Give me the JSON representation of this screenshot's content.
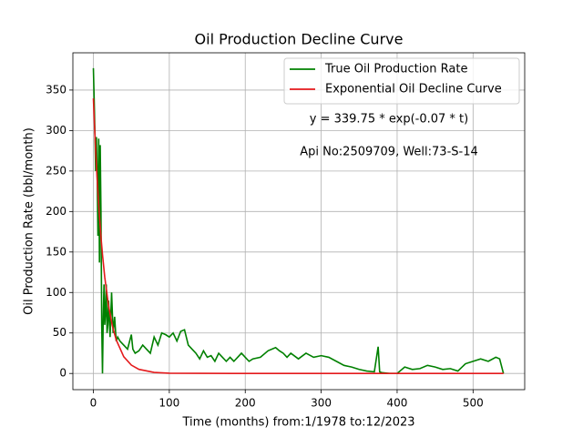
{
  "chart_data": {
    "type": "line",
    "title": "Oil Production Decline Curve",
    "xlabel": "Time (months) from:1/1978 to:12/2023",
    "ylabel": "Oil Production Rate (bbl/month)",
    "annotations": [
      "y = 339.75 * exp(-0.07 * t)",
      "Api No:2509709, Well:73-S-14"
    ],
    "xlim": [
      -27,
      568
    ],
    "ylim": [
      -20,
      396
    ],
    "xticks": [
      0,
      100,
      200,
      300,
      400,
      500
    ],
    "yticks": [
      0,
      50,
      100,
      150,
      200,
      250,
      300,
      350
    ],
    "grid": true,
    "legend": "upper right",
    "series": [
      {
        "name": "True Oil Production Rate",
        "color": "#008000",
        "x": [
          0,
          1,
          2,
          3,
          4,
          5,
          6,
          7,
          8,
          9,
          10,
          11,
          12,
          13,
          14,
          15,
          16,
          17,
          18,
          19,
          20,
          22,
          24,
          26,
          28,
          30,
          32,
          35,
          40,
          45,
          50,
          52,
          55,
          60,
          65,
          70,
          75,
          80,
          85,
          90,
          95,
          100,
          105,
          110,
          115,
          120,
          125,
          130,
          135,
          140,
          145,
          150,
          155,
          160,
          165,
          170,
          175,
          180,
          185,
          190,
          195,
          200,
          205,
          210,
          220,
          230,
          240,
          245,
          250,
          255,
          260,
          270,
          280,
          290,
          300,
          310,
          320,
          330,
          340,
          350,
          360,
          370,
          375,
          377,
          380,
          390,
          400,
          410,
          420,
          430,
          440,
          450,
          460,
          470,
          480,
          490,
          500,
          510,
          520,
          530,
          535,
          540
        ],
        "values": [
          377,
          340,
          300,
          250,
          292,
          245,
          170,
          290,
          137,
          282,
          200,
          60,
          0,
          70,
          110,
          60,
          75,
          110,
          50,
          60,
          90,
          45,
          100,
          50,
          70,
          40,
          45,
          40,
          35,
          30,
          48,
          30,
          25,
          28,
          35,
          30,
          25,
          45,
          35,
          50,
          48,
          45,
          50,
          40,
          52,
          54,
          35,
          30,
          25,
          18,
          28,
          20,
          22,
          15,
          25,
          20,
          15,
          20,
          15,
          20,
          25,
          20,
          15,
          18,
          20,
          28,
          32,
          28,
          25,
          20,
          25,
          18,
          25,
          20,
          22,
          20,
          15,
          10,
          8,
          5,
          3,
          2,
          33,
          2,
          1,
          0,
          0,
          8,
          5,
          6,
          10,
          8,
          5,
          6,
          3,
          12,
          15,
          18,
          15,
          20,
          18,
          0
        ]
      },
      {
        "name": "Exponential Oil Decline Curve",
        "color": "#e41a1c",
        "x": [
          0,
          2,
          4,
          6,
          8,
          10,
          12,
          15,
          20,
          25,
          30,
          40,
          50,
          60,
          80,
          100,
          200,
          300,
          400,
          540
        ],
        "values": [
          339.75,
          295.4,
          256.8,
          223.3,
          194.1,
          168.7,
          146.7,
          118.7,
          83.5,
          58.9,
          41.6,
          20.7,
          10.3,
          5.1,
          1.3,
          0.3,
          0,
          0,
          0,
          0
        ]
      }
    ]
  }
}
